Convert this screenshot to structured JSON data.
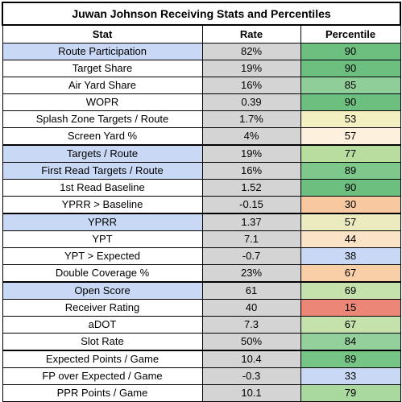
{
  "title": "Juwan Johnson Receiving Stats and Percentiles",
  "headers": {
    "stat": "Stat",
    "rate": "Rate",
    "percentile": "Percentile"
  },
  "colors": {
    "highlight_stat": "#c9d9f5",
    "rate_bg": "#d4d4d4",
    "dark_green": "#6cbf7f",
    "mid_green": "#8fce99",
    "light_green": "#b7de9f",
    "pale_yellow": "#f3efc0",
    "light_peach": "#fbe3c8",
    "peach": "#f8c8a0",
    "light_blue": "#c9d9f5",
    "red": "#ec8677"
  },
  "rows": [
    {
      "stat": "Route Participation",
      "rate": "82%",
      "percentile": "90",
      "stat_bg": "#c9d9f5",
      "pct_bg": "#6cbf7f",
      "sep": false
    },
    {
      "stat": "Target Share",
      "rate": "19%",
      "percentile": "90",
      "stat_bg": "#ffffff",
      "pct_bg": "#6cbf7f",
      "sep": false
    },
    {
      "stat": "Air Yard Share",
      "rate": "16%",
      "percentile": "85",
      "stat_bg": "#ffffff",
      "pct_bg": "#8fce99",
      "sep": false
    },
    {
      "stat": "WOPR",
      "rate": "0.39",
      "percentile": "90",
      "stat_bg": "#ffffff",
      "pct_bg": "#6cbf7f",
      "sep": false
    },
    {
      "stat": "Splash Zone Targets / Route",
      "rate": "1.7%",
      "percentile": "53",
      "stat_bg": "#ffffff",
      "pct_bg": "#f3efc0",
      "sep": false
    },
    {
      "stat": "Screen Yard %",
      "rate": "4%",
      "percentile": "57",
      "stat_bg": "#ffffff",
      "pct_bg": "#fdf0dc",
      "sep": false
    },
    {
      "stat": "Targets / Route",
      "rate": "19%",
      "percentile": "77",
      "stat_bg": "#c9d9f5",
      "pct_bg": "#b7de9f",
      "sep": true
    },
    {
      "stat": "First Read Targets / Route",
      "rate": "16%",
      "percentile": "89",
      "stat_bg": "#c9d9f5",
      "pct_bg": "#7ec88c",
      "sep": false
    },
    {
      "stat": "1st Read Baseline",
      "rate": "1.52",
      "percentile": "90",
      "stat_bg": "#ffffff",
      "pct_bg": "#6cbf7f",
      "sep": false
    },
    {
      "stat": "YPRR > Baseline",
      "rate": "-0.15",
      "percentile": "30",
      "stat_bg": "#ffffff",
      "pct_bg": "#f8c8a0",
      "sep": false
    },
    {
      "stat": "YPRR",
      "rate": "1.37",
      "percentile": "57",
      "stat_bg": "#c9d9f5",
      "pct_bg": "#ecebc0",
      "sep": true
    },
    {
      "stat": "YPT",
      "rate": "7.1",
      "percentile": "44",
      "stat_bg": "#ffffff",
      "pct_bg": "#fbe3c8",
      "sep": false
    },
    {
      "stat": "YPT > Expected",
      "rate": "-0.7",
      "percentile": "38",
      "stat_bg": "#ffffff",
      "pct_bg": "#c9d9f5",
      "sep": false
    },
    {
      "stat": "Double Coverage %",
      "rate": "23%",
      "percentile": "67",
      "stat_bg": "#ffffff",
      "pct_bg": "#f9cfa8",
      "sep": false
    },
    {
      "stat": "Open Score",
      "rate": "61",
      "percentile": "69",
      "stat_bg": "#c9d9f5",
      "pct_bg": "#c5e2ac",
      "sep": true
    },
    {
      "stat": "Receiver Rating",
      "rate": "40",
      "percentile": "15",
      "stat_bg": "#ffffff",
      "pct_bg": "#ec8677",
      "sep": false
    },
    {
      "stat": "aDOT",
      "rate": "7.3",
      "percentile": "67",
      "stat_bg": "#ffffff",
      "pct_bg": "#c5e2ac",
      "sep": false
    },
    {
      "stat": "Slot Rate",
      "rate": "50%",
      "percentile": "84",
      "stat_bg": "#ffffff",
      "pct_bg": "#94d09c",
      "sep": false
    },
    {
      "stat": "Expected Points / Game",
      "rate": "10.4",
      "percentile": "89",
      "stat_bg": "#ffffff",
      "pct_bg": "#76c586",
      "sep": true
    },
    {
      "stat": "FP over Expected / Game",
      "rate": "-0.3",
      "percentile": "33",
      "stat_bg": "#ffffff",
      "pct_bg": "#c9d9f5",
      "sep": false
    },
    {
      "stat": "PPR Points / Game",
      "rate": "10.1",
      "percentile": "79",
      "stat_bg": "#ffffff",
      "pct_bg": "#aad99f",
      "sep": false
    }
  ]
}
